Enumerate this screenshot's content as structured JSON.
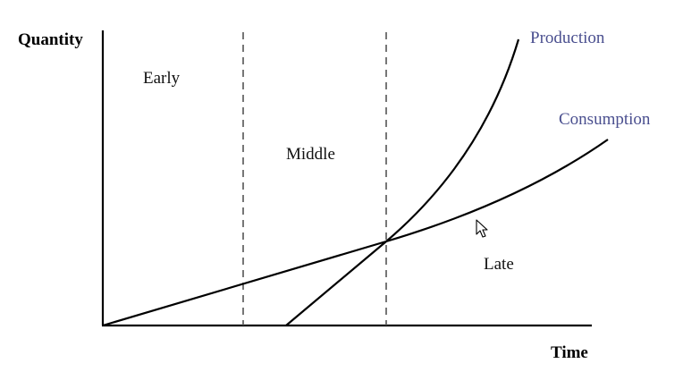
{
  "axes": {
    "y_label": "Quantity",
    "x_label": "Time"
  },
  "regions": {
    "early": "Early",
    "middle": "Middle",
    "late": "Late"
  },
  "series": {
    "production": "Production",
    "consumption": "Consumption"
  },
  "colors": {
    "series_label": "#4a4f8f",
    "axis": "#000000",
    "divider": "#555555",
    "curve": "#000000"
  },
  "icons": {
    "cursor": "mouse-pointer-icon"
  }
}
